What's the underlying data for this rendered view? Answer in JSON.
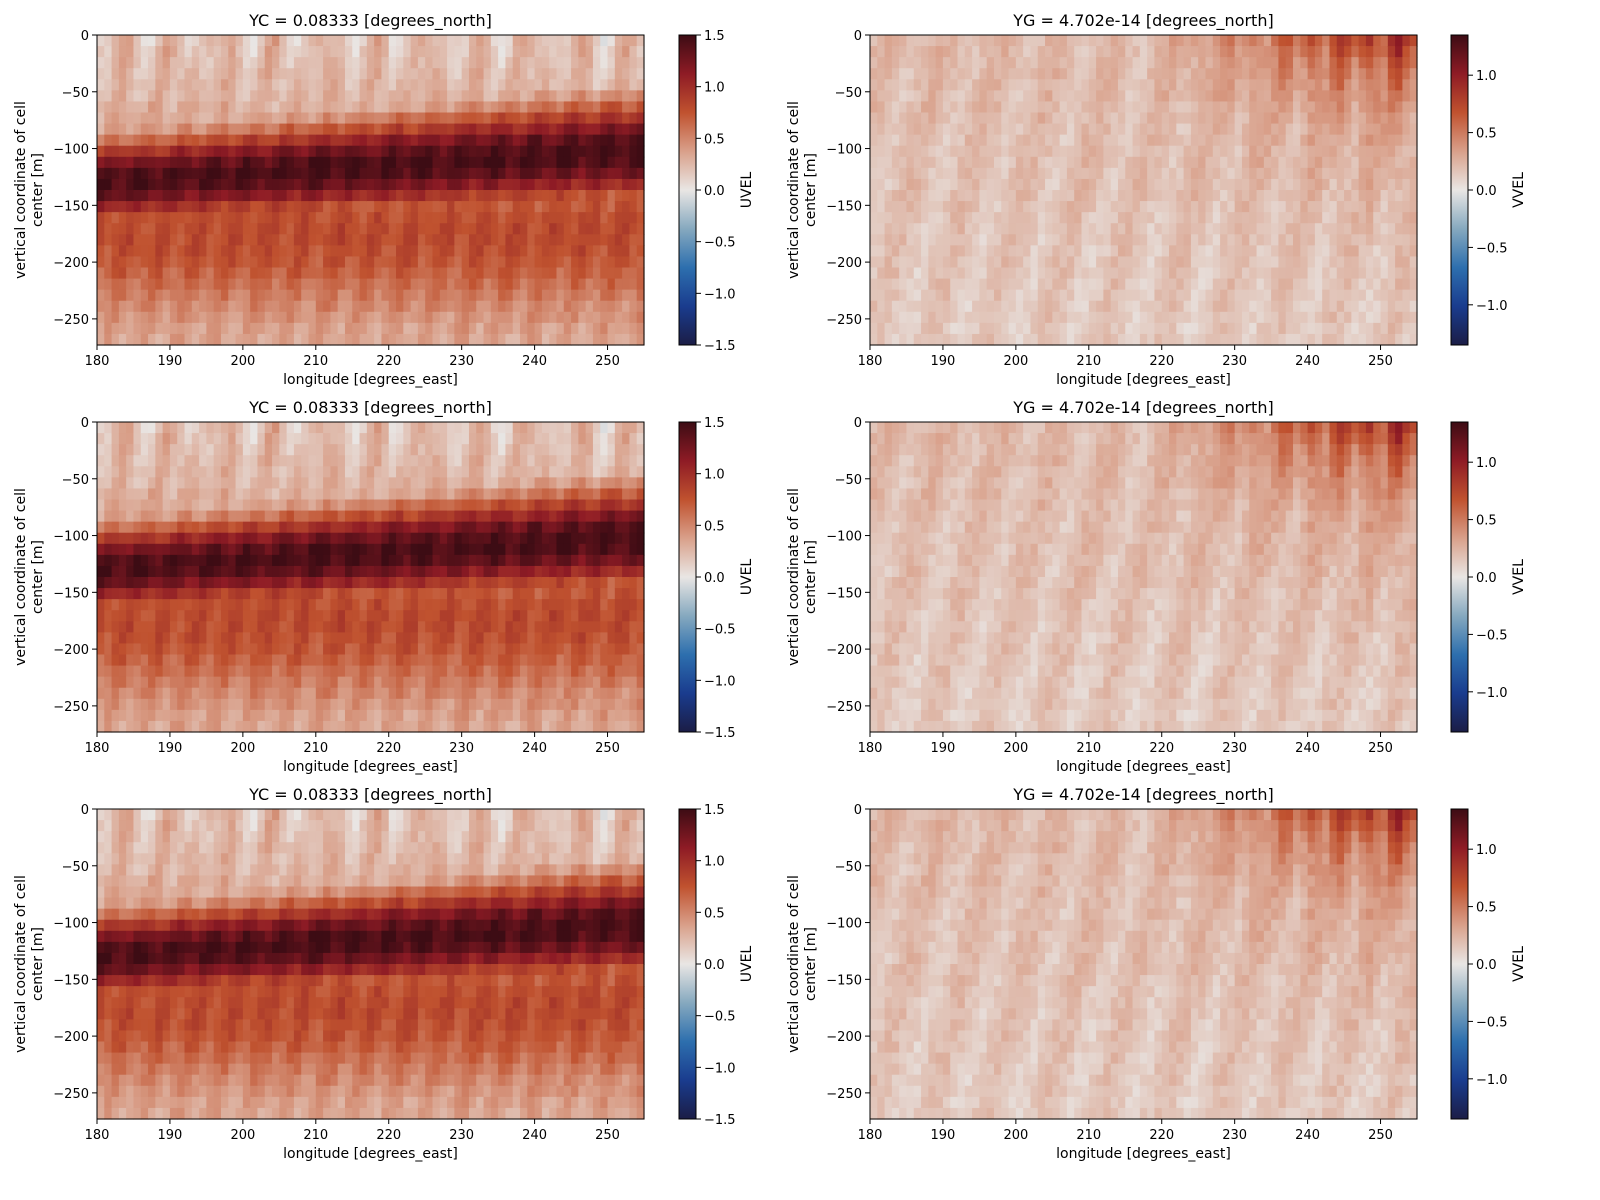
{
  "colorbar_gradient": [
    "#1b1d46",
    "#1a3c8e",
    "#2d6fae",
    "#86a9bf",
    "#e9e6e4",
    "#d9a08a",
    "#c0522f",
    "#8e1b25",
    "#3d0c14"
  ],
  "chart_data": [
    {
      "type": "heatmap",
      "title": "YC = 0.08333 [degrees_north]",
      "xlabel": "longitude [degrees_east]",
      "ylabel_lines": [
        "vertical coordinate of cell",
        "center [m]"
      ],
      "xlim": [
        180,
        255
      ],
      "ylim": [
        -273,
        0
      ],
      "xticks": [
        180,
        190,
        200,
        210,
        220,
        230,
        240,
        250
      ],
      "yticks": [
        0,
        -50,
        -100,
        -150,
        -200,
        -250
      ],
      "colorbar": {
        "label": "UVEL",
        "vmin": -1.5,
        "vmax": 1.5,
        "ticks": [
          1.5,
          1.0,
          0.5,
          0.0,
          -0.5,
          -1.0,
          -1.5
        ],
        "tick_labels": [
          "1.5",
          "1.0",
          "0.5",
          "0.0",
          "−0.5",
          "−1.0",
          "−1.5"
        ]
      },
      "field": "uvel"
    },
    {
      "type": "heatmap",
      "title": "YG = 4.702e-14 [degrees_north]",
      "xlabel": "longitude [degrees_east]",
      "ylabel_lines": [
        "vertical coordinate of cell",
        "center [m]"
      ],
      "xlim": [
        180,
        255
      ],
      "ylim": [
        -273,
        0
      ],
      "xticks": [
        180,
        190,
        200,
        210,
        220,
        230,
        240,
        250
      ],
      "yticks": [
        0,
        -50,
        -100,
        -150,
        -200,
        -250
      ],
      "colorbar": {
        "label": "VVEL",
        "vmin": -1.35,
        "vmax": 1.35,
        "ticks": [
          1.0,
          0.5,
          0.0,
          -0.5,
          -1.0
        ],
        "tick_labels": [
          "1.0",
          "0.5",
          "0.0",
          "−0.5",
          "−1.0"
        ]
      },
      "field": "vvel"
    },
    {
      "type": "heatmap",
      "title": "YC = 0.08333 [degrees_north]",
      "xlabel": "longitude [degrees_east]",
      "ylabel_lines": [
        "vertical coordinate of cell",
        "center [m]"
      ],
      "xlim": [
        180,
        255
      ],
      "ylim": [
        -273,
        0
      ],
      "xticks": [
        180,
        190,
        200,
        210,
        220,
        230,
        240,
        250
      ],
      "yticks": [
        0,
        -50,
        -100,
        -150,
        -200,
        -250
      ],
      "colorbar": {
        "label": "UVEL",
        "vmin": -1.5,
        "vmax": 1.5,
        "ticks": [
          1.5,
          1.0,
          0.5,
          0.0,
          -0.5,
          -1.0,
          -1.5
        ],
        "tick_labels": [
          "1.5",
          "1.0",
          "0.5",
          "0.0",
          "−0.5",
          "−1.0",
          "−1.5"
        ]
      },
      "field": "uvel"
    },
    {
      "type": "heatmap",
      "title": "YG = 4.702e-14 [degrees_north]",
      "xlabel": "longitude [degrees_east]",
      "ylabel_lines": [
        "vertical coordinate of cell",
        "center [m]"
      ],
      "xlim": [
        180,
        255
      ],
      "ylim": [
        -273,
        0
      ],
      "xticks": [
        180,
        190,
        200,
        210,
        220,
        230,
        240,
        250
      ],
      "yticks": [
        0,
        -50,
        -100,
        -150,
        -200,
        -250
      ],
      "colorbar": {
        "label": "VVEL",
        "vmin": -1.35,
        "vmax": 1.35,
        "ticks": [
          1.0,
          0.5,
          0.0,
          -0.5,
          -1.0
        ],
        "tick_labels": [
          "1.0",
          "0.5",
          "0.0",
          "−0.5",
          "−1.0"
        ]
      },
      "field": "vvel"
    },
    {
      "type": "heatmap",
      "title": "YC = 0.08333 [degrees_north]",
      "xlabel": "longitude [degrees_east]",
      "ylabel_lines": [
        "vertical coordinate of cell",
        "center [m]"
      ],
      "xlim": [
        180,
        255
      ],
      "ylim": [
        -273,
        0
      ],
      "xticks": [
        180,
        190,
        200,
        210,
        220,
        230,
        240,
        250
      ],
      "yticks": [
        0,
        -50,
        -100,
        -150,
        -200,
        -250
      ],
      "colorbar": {
        "label": "UVEL",
        "vmin": -1.5,
        "vmax": 1.5,
        "ticks": [
          1.5,
          1.0,
          0.5,
          0.0,
          -0.5,
          -1.0,
          -1.5
        ],
        "tick_labels": [
          "1.5",
          "1.0",
          "0.5",
          "0.0",
          "−0.5",
          "−1.0",
          "−1.5"
        ]
      },
      "field": "uvel"
    },
    {
      "type": "heatmap",
      "title": "YG = 4.702e-14 [degrees_north]",
      "xlabel": "longitude [degrees_east]",
      "ylabel_lines": [
        "vertical coordinate of cell",
        "center [m]"
      ],
      "xlim": [
        180,
        255
      ],
      "ylim": [
        -273,
        0
      ],
      "xticks": [
        180,
        190,
        200,
        210,
        220,
        230,
        240,
        250
      ],
      "yticks": [
        0,
        -50,
        -100,
        -150,
        -200,
        -250
      ],
      "colorbar": {
        "label": "VVEL",
        "vmin": -1.35,
        "vmax": 1.35,
        "ticks": [
          1.0,
          0.5,
          0.0,
          -0.5,
          -1.0
        ],
        "tick_labels": [
          "1.0",
          "0.5",
          "0.0",
          "−0.5",
          "−1.0"
        ]
      },
      "field": "vvel"
    }
  ]
}
